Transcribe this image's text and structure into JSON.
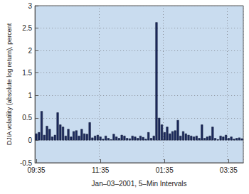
{
  "chart_data": {
    "type": "bar",
    "xlabel": "Jan–03–2001, 5–Min Intervals",
    "ylabel": "DJIA volatility (absolute log return), percent",
    "categories": [
      "09:35",
      null,
      null,
      null,
      null,
      null,
      null,
      null,
      null,
      null,
      null,
      null,
      null,
      null,
      null,
      null,
      null,
      null,
      null,
      null,
      null,
      null,
      null,
      null,
      "11:35",
      null,
      null,
      null,
      null,
      null,
      null,
      null,
      null,
      null,
      null,
      null,
      null,
      null,
      null,
      null,
      null,
      null,
      null,
      null,
      null,
      null,
      null,
      null,
      "01:35",
      null,
      null,
      null,
      null,
      null,
      null,
      null,
      null,
      null,
      null,
      null,
      null,
      null,
      null,
      null,
      null,
      null,
      null,
      null,
      null,
      null,
      null,
      null,
      "03:35",
      null,
      null,
      null,
      null,
      null
    ],
    "values": [
      0.15,
      0.18,
      0.65,
      0.12,
      0.32,
      0.25,
      0.08,
      0.12,
      0.62,
      0.35,
      0.3,
      0.1,
      0.25,
      0.08,
      0.2,
      0.22,
      0.1,
      0.25,
      0.15,
      0.14,
      0.4,
      0.06,
      0.1,
      0.12,
      0.08,
      0.03,
      0.1,
      0.05,
      0.02,
      0.14,
      0.08,
      0.05,
      0.12,
      0.1,
      0.05,
      0.04,
      0.1,
      0.08,
      0.05,
      0.1,
      0.07,
      0.03,
      0.18,
      0.05,
      0.1,
      2.63,
      0.5,
      0.35,
      0.18,
      0.3,
      0.15,
      0.2,
      0.22,
      0.45,
      0.1,
      0.2,
      0.15,
      0.12,
      0.1,
      0.08,
      0.1,
      0.05,
      0.35,
      0.05,
      0.08,
      0.1,
      0.3,
      0.05,
      0.02,
      0.1,
      0.08,
      0.12,
      0.05,
      0.08,
      0.03,
      0.05,
      0.06,
      0.04
    ],
    "color": "#1c2a5e",
    "ylim": [
      -0.5,
      3
    ],
    "yticks": [
      -0.5,
      0,
      0.5,
      1,
      1.5,
      2,
      2.5,
      3
    ],
    "grid": true
  }
}
